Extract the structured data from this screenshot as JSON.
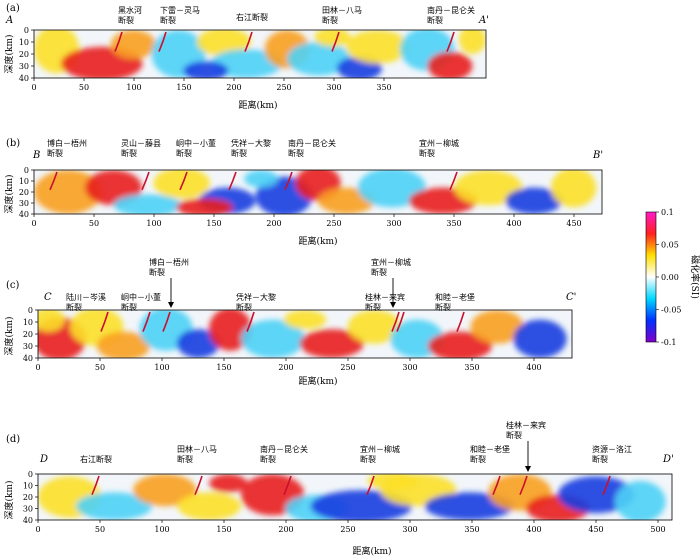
{
  "colorbar": {
    "label": "磁化率(SI)",
    "ticks": [
      "0.1",
      "0.05",
      "0.00",
      "-0.05",
      "-0.1"
    ],
    "colors": [
      "#ff1cc8",
      "#ff2020",
      "#ffe000",
      "#ffffff",
      "#00d8ff",
      "#0030ff",
      "#8000c8"
    ]
  },
  "panels": [
    {
      "id": "a",
      "letter": "(a)",
      "start_label": "A",
      "end_label": "A'",
      "x_ticks": [
        "0",
        "50",
        "100",
        "150",
        "200",
        "250",
        "300",
        "350"
      ],
      "y_ticks": [
        "0",
        "10",
        "20",
        "30",
        "40"
      ],
      "xlabel": "距离(km)",
      "ylabel": "深度(km)",
      "faults": [
        {
          "name": "黑水河断裂",
          "lines": [
            "黑水河",
            "断裂"
          ]
        },
        {
          "name": "下雷-灵马断裂",
          "lines": [
            "下雷－灵马",
            "断裂"
          ]
        },
        {
          "name": "右江断裂",
          "lines": [
            "右江断裂"
          ]
        },
        {
          "name": "田林-八马断裂",
          "lines": [
            "田林－八马",
            "断裂"
          ]
        },
        {
          "name": "南丹-昆仑关断裂",
          "lines": [
            "南丹－昆仑关",
            "断裂"
          ]
        }
      ]
    },
    {
      "id": "b",
      "letter": "(b)",
      "start_label": "B",
      "end_label": "B'",
      "x_ticks": [
        "0",
        "50",
        "100",
        "150",
        "200",
        "250",
        "300",
        "350",
        "400",
        "450"
      ],
      "y_ticks": [
        "0",
        "10",
        "20",
        "30",
        "40"
      ],
      "xlabel": "距离(km)",
      "ylabel": "深度(km)",
      "faults": [
        {
          "name": "博白-梧州断裂",
          "lines": [
            "博白－梧州",
            "断裂"
          ]
        },
        {
          "name": "灵山-藤县断裂",
          "lines": [
            "灵山－藤县",
            "断裂"
          ]
        },
        {
          "name": "峒中-小董断裂",
          "lines": [
            "峒中－小董",
            "断裂"
          ]
        },
        {
          "name": "凭祥-大黎断裂",
          "lines": [
            "凭祥－大黎",
            "断裂"
          ]
        },
        {
          "name": "南丹-昆仑关断裂",
          "lines": [
            "南丹－昆仑关",
            "断裂"
          ]
        },
        {
          "name": "宜州-柳城断裂",
          "lines": [
            "宜州－柳城",
            "断裂"
          ]
        }
      ]
    },
    {
      "id": "c",
      "letter": "(c)",
      "start_label": "C",
      "end_label": "C'",
      "x_ticks": [
        "0",
        "50",
        "100",
        "150",
        "200",
        "250",
        "300",
        "350",
        "400"
      ],
      "y_ticks": [
        "0",
        "10",
        "20",
        "30",
        "40"
      ],
      "xlabel": "距离(km)",
      "ylabel": "深度(km)",
      "faults": [
        {
          "name": "陆川-岑溪断裂",
          "lines": [
            "陆川－岑溪",
            "断裂"
          ]
        },
        {
          "name": "峒中-小董断裂",
          "lines": [
            "峒中－小董",
            "断裂"
          ]
        },
        {
          "name": "博白-梧州断裂",
          "lines": [
            "博白－梧州",
            "断裂"
          ]
        },
        {
          "name": "凭祥-大黎断裂",
          "lines": [
            "凭祥－大黎",
            "断裂"
          ]
        },
        {
          "name": "桂林-来宾断裂",
          "lines": [
            "桂林－来宾",
            "断裂"
          ]
        },
        {
          "name": "宜州-柳城断裂",
          "lines": [
            "宜州－柳城",
            "断裂"
          ]
        },
        {
          "name": "和睦-老堡断裂",
          "lines": [
            "和睦－老堡",
            "断裂"
          ]
        }
      ]
    },
    {
      "id": "d",
      "letter": "(d)",
      "start_label": "D",
      "end_label": "D'",
      "x_ticks": [
        "0",
        "50",
        "100",
        "150",
        "200",
        "250",
        "300",
        "350",
        "400",
        "450",
        "500"
      ],
      "y_ticks": [
        "0",
        "10",
        "20",
        "30",
        "40"
      ],
      "xlabel": "距离(km)",
      "ylabel": "深度(km)",
      "faults": [
        {
          "name": "右江断裂",
          "lines": [
            "右江断裂"
          ]
        },
        {
          "name": "田林-八马断裂",
          "lines": [
            "田林－八马",
            "断裂"
          ]
        },
        {
          "name": "南丹-昆仑关断裂",
          "lines": [
            "南丹－昆仑关",
            "断裂"
          ]
        },
        {
          "name": "宜州-柳城断裂",
          "lines": [
            "宜州－柳城",
            "断裂"
          ]
        },
        {
          "name": "和睦-老堡断裂",
          "lines": [
            "和睦－老堡",
            "断裂"
          ]
        },
        {
          "name": "桂林-来宾断裂",
          "lines": [
            "桂林－来宾",
            "断裂"
          ]
        },
        {
          "name": "资源-洛江断裂",
          "lines": [
            "资源－洛江",
            "断裂"
          ]
        }
      ]
    }
  ]
}
